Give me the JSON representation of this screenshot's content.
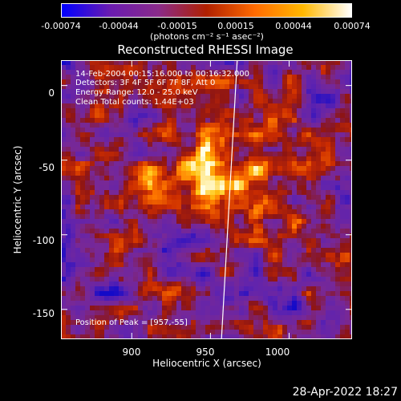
{
  "colorbar": {
    "ticks": [
      "-0.00074",
      "-0.00044",
      "-0.00015",
      "0.00015",
      "0.00044",
      "0.00074"
    ],
    "units": "(photons cm⁻² s⁻¹ asec⁻²)",
    "colors": [
      "#0000ff",
      "#6a1bb0",
      "#8a2b8a",
      "#b02000",
      "#ff6a00",
      "#ffb800",
      "#ffffff"
    ]
  },
  "annotations": {
    "time": "14-Feb-2004 00:15:16.000 to 00:16:32.000",
    "detectors": "Detectors: 3F 4F 5F 6F 7F 8F, Att 0",
    "energy": "Energy Range: 12.0 - 25.0 keV",
    "clean": "Clean    Total counts: 1.44E+03",
    "peak": "Position of Peak = [957,-55]"
  },
  "footer": {
    "timestamp": "28-Apr-2022 18:27"
  },
  "chart_data": {
    "type": "heatmap",
    "title": "Reconstructed RHESSI Image",
    "xlabel": "Heliocentric X (arcsec)",
    "ylabel": "Heliocentric Y (arcsec)",
    "xlim": [
      855,
      1040
    ],
    "ylim": [
      -170,
      17
    ],
    "xticks": [
      900,
      950,
      1000
    ],
    "yticks": [
      0,
      -50,
      -100,
      -150
    ],
    "colorbar_range": [
      -0.00074,
      0.00074
    ],
    "peak": {
      "x": 957,
      "y": -55
    },
    "limb_line": [
      [
        957,
        -170
      ],
      [
        967,
        17
      ]
    ]
  }
}
